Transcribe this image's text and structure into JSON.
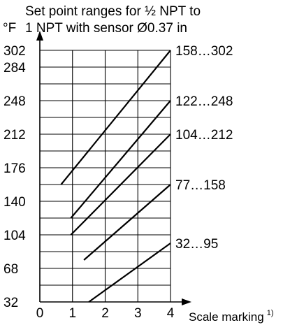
{
  "chart_data": {
    "type": "line",
    "title_line1": "Set point ranges for ½ NPT to",
    "title_line2": "1 NPT with sensor Ø0.37 in",
    "ylabel": "°F",
    "xlabel": "Scale marking",
    "xlabel_footnote": "1)",
    "xlim": [
      0,
      4
    ],
    "ylim": [
      32,
      302
    ],
    "x_ticks": [
      "0",
      "1",
      "2",
      "3",
      "4"
    ],
    "y_ticks": [
      "32",
      "68",
      "104",
      "140",
      "176",
      "212",
      "248",
      "284",
      "302"
    ],
    "grid": true,
    "series": [
      {
        "range_label": "158…302",
        "x": [
          0.65,
          4
        ],
        "y": [
          158,
          302
        ]
      },
      {
        "range_label": "122…248",
        "x": [
          0.95,
          4
        ],
        "y": [
          122,
          248
        ]
      },
      {
        "range_label": "104…212",
        "x": [
          0.95,
          4
        ],
        "y": [
          104,
          212
        ]
      },
      {
        "range_label": "77…158",
        "x": [
          1.35,
          4
        ],
        "y": [
          77,
          158
        ]
      },
      {
        "range_label": "32…95",
        "x": [
          1.5,
          4
        ],
        "y": [
          32,
          95
        ]
      }
    ]
  }
}
